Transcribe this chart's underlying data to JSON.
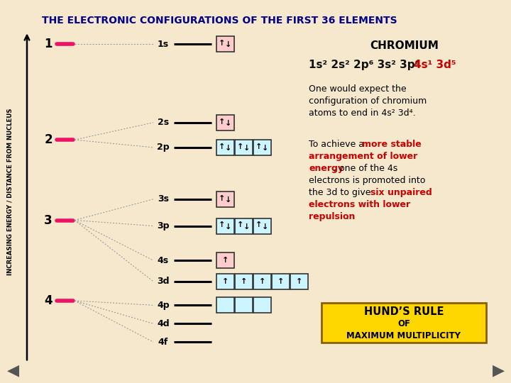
{
  "title": "THE ELECTRONIC CONFIGURATIONS OF THE FIRST 36 ELEMENTS",
  "bg_color": "#f5e8cc",
  "title_color": "#00008B",
  "shell_color": "#ee1166",
  "ylabel": "INCREASING ENERGY / DISTANCE FROM NUCLEUS",
  "shell_y_frac": {
    "1": 0.115,
    "2": 0.365,
    "3": 0.575,
    "4": 0.785
  },
  "orbital_y_frac": {
    "4f": 0.893,
    "4d": 0.845,
    "4p": 0.797,
    "3d": 0.735,
    "4s": 0.68,
    "3p": 0.59,
    "3s": 0.52,
    "2p": 0.385,
    "2s": 0.32,
    "1s": 0.115
  },
  "fan_connections": {
    "1": [
      "1s"
    ],
    "2": [
      "2s",
      "2p"
    ],
    "3": [
      "3s",
      "3p",
      "4s",
      "3d"
    ],
    "4": [
      "4p",
      "4d",
      "4f"
    ]
  },
  "orbital_boxes": {
    "1s": {
      "fill": "#ffcccc",
      "cells": [
        "↑3"
      ]
    },
    "2s": {
      "fill": "#ffcccc",
      "cells": [
        "↑3"
      ]
    },
    "2p": {
      "fill": "#ccf5ff",
      "cells": [
        "↑3",
        "↑3",
        "↑3"
      ]
    },
    "3s": {
      "fill": "#ffcccc",
      "cells": [
        "↑3"
      ]
    },
    "3p": {
      "fill": "#ccf5ff",
      "cells": [
        "↑3",
        "↑3",
        "↑3"
      ]
    },
    "4s": {
      "fill": "#ffcccc",
      "cells": [
        "↑1"
      ]
    },
    "3d": {
      "fill": "#ccf5ff",
      "cells": [
        "↑1",
        "↑1",
        "↑1",
        "↑1",
        "↑1"
      ]
    },
    "4p": {
      "fill": "#ccf5ff",
      "cells": [
        "",
        "",
        ""
      ]
    },
    "4d": {
      "fill": "#ccf5ff",
      "cells": []
    },
    "4f": {
      "fill": "#ccf5ff",
      "cells": []
    }
  },
  "chromium_title": "CHROMIUM",
  "config_black": "1s² 2s² 2p⁶ 3s² 3p⁶",
  "config_red": "4s¹ 3d⁵",
  "text1_lines": [
    "One would expect the",
    "configuration of chromium",
    "atoms to end in 4s² 3d⁴."
  ],
  "text2_segments": [
    [
      "To achieve a ",
      "black"
    ],
    [
      "more stable",
      "red"
    ],
    [
      "\narrangement of lower",
      "red"
    ],
    [
      "\nenergy",
      "red"
    ],
    [
      ", one of the 4s",
      "black"
    ],
    [
      "\nelectrons is promoted into",
      "black"
    ],
    [
      "\nthe 3d to give ",
      "black"
    ],
    [
      "six unpaired",
      "red"
    ],
    [
      "\nelectrons with lower",
      "red"
    ],
    [
      "\nrepulsion",
      "red"
    ],
    [
      ".",
      "black"
    ]
  ],
  "hunds_title": "HUND’S RULE",
  "hunds_of": "OF",
  "hunds_sub": "MAXIMUM MULTIPLICITY",
  "hunds_bg": "#FFD700",
  "hunds_border": "#8B6000",
  "nav_color": "#555555"
}
